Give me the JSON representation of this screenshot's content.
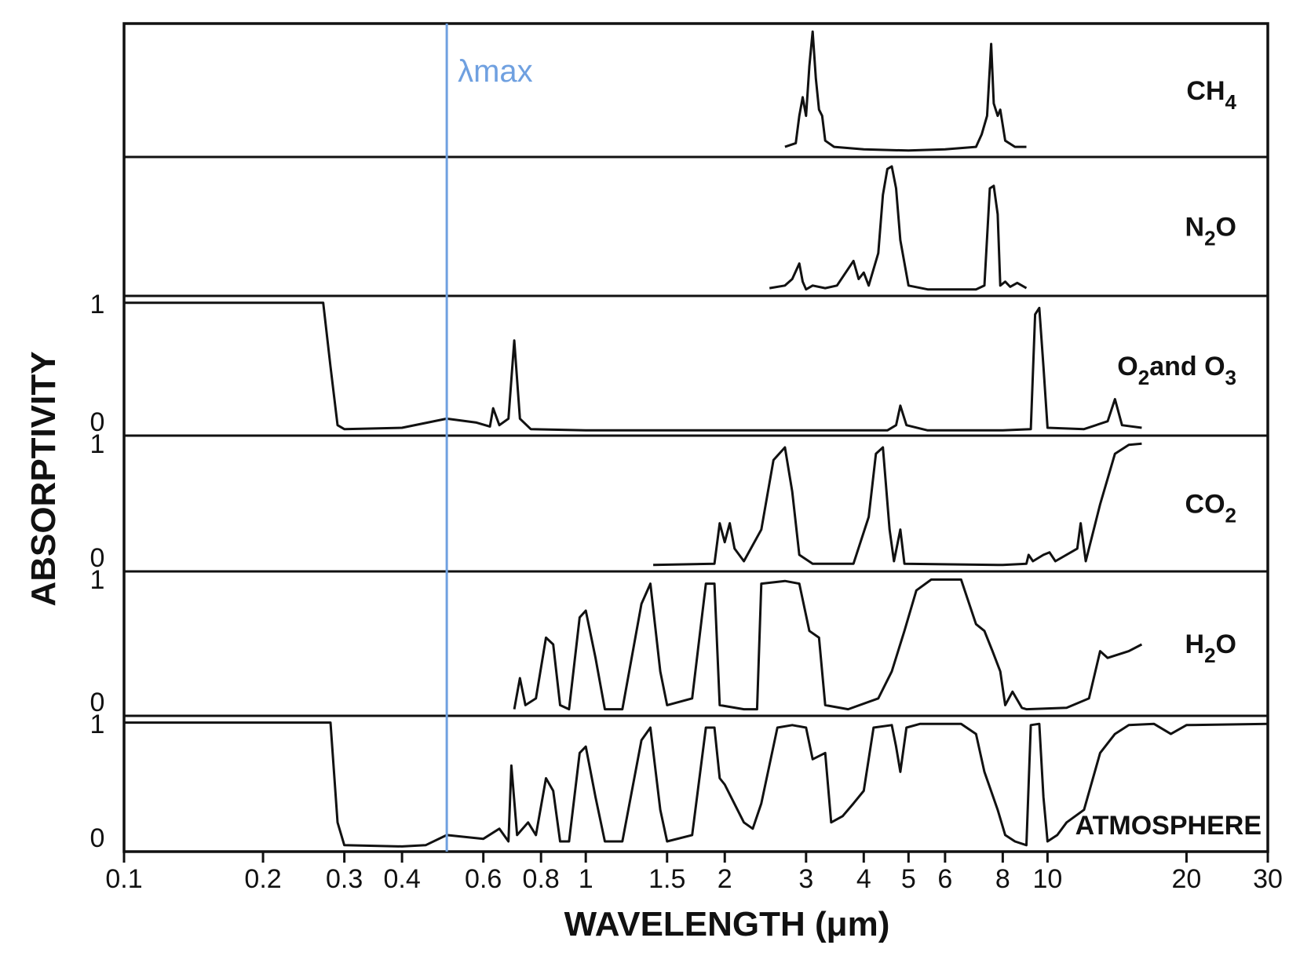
{
  "chart_data": {
    "type": "line",
    "title": "",
    "xlabel": "WAVELENGTH (μm)",
    "ylabel": "ABSORPTIVITY",
    "x_scale": "log",
    "xlim": [
      0.1,
      30
    ],
    "ylim": [
      0,
      1
    ],
    "grid": false,
    "x_ticks": [
      {
        "value": 0.1,
        "label": "0.1"
      },
      {
        "value": 0.2,
        "label": "0.2"
      },
      {
        "value": 0.3,
        "label": "0.3"
      },
      {
        "value": 0.4,
        "label": "0.4"
      },
      {
        "value": 0.6,
        "label": "0.6"
      },
      {
        "value": 0.8,
        "label": "0.8"
      },
      {
        "value": 1,
        "label": "1"
      },
      {
        "value": 1.5,
        "label": "1.5"
      },
      {
        "value": 2,
        "label": "2"
      },
      {
        "value": 3,
        "label": "3"
      },
      {
        "value": 4,
        "label": "4"
      },
      {
        "value": 5,
        "label": "5"
      },
      {
        "value": 6,
        "label": "6"
      },
      {
        "value": 8,
        "label": "8"
      },
      {
        "value": 10,
        "label": "10"
      },
      {
        "value": 20,
        "label": "20"
      },
      {
        "value": 30,
        "label": "30"
      }
    ],
    "panel_axis_labels": [
      {
        "panel": 2,
        "end": "top",
        "text": "1"
      },
      {
        "panel": 2,
        "end": "bottom",
        "text": "0"
      },
      {
        "panel": 3,
        "end": "top",
        "text": "1"
      },
      {
        "panel": 3,
        "end": "bottom",
        "text": "0"
      },
      {
        "panel": 4,
        "end": "top",
        "text": "1"
      },
      {
        "panel": 4,
        "end": "bottom",
        "text": "0"
      },
      {
        "panel": 5,
        "end": "top",
        "text": "1"
      },
      {
        "panel": 5,
        "end": "bottom",
        "text": "0"
      }
    ],
    "annotation": {
      "text": "λmax",
      "x": 0.5,
      "color": "#6fa0e0"
    },
    "series": [
      {
        "name": "CH4",
        "label_main": "CH",
        "label_sub": "4",
        "points": [
          [
            2.7,
            0.05
          ],
          [
            2.85,
            0.08
          ],
          [
            2.9,
            0.3
          ],
          [
            2.95,
            0.45
          ],
          [
            3.0,
            0.3
          ],
          [
            3.05,
            0.7
          ],
          [
            3.1,
            0.98
          ],
          [
            3.15,
            0.6
          ],
          [
            3.2,
            0.35
          ],
          [
            3.25,
            0.3
          ],
          [
            3.3,
            0.1
          ],
          [
            3.45,
            0.05
          ],
          [
            4,
            0.03
          ],
          [
            5,
            0.02
          ],
          [
            6,
            0.03
          ],
          [
            7,
            0.05
          ],
          [
            7.2,
            0.15
          ],
          [
            7.4,
            0.3
          ],
          [
            7.55,
            0.88
          ],
          [
            7.65,
            0.4
          ],
          [
            7.8,
            0.3
          ],
          [
            7.9,
            0.35
          ],
          [
            8.1,
            0.1
          ],
          [
            8.5,
            0.05
          ],
          [
            9,
            0.05
          ]
        ]
      },
      {
        "name": "N2O",
        "label_main": "N",
        "label_sub": "2",
        "label_tail": "O",
        "points": [
          [
            2.5,
            0.03
          ],
          [
            2.7,
            0.05
          ],
          [
            2.8,
            0.1
          ],
          [
            2.9,
            0.22
          ],
          [
            2.95,
            0.08
          ],
          [
            3.0,
            0.02
          ],
          [
            3.1,
            0.05
          ],
          [
            3.3,
            0.03
          ],
          [
            3.5,
            0.05
          ],
          [
            3.8,
            0.24
          ],
          [
            3.9,
            0.1
          ],
          [
            4.0,
            0.15
          ],
          [
            4.1,
            0.05
          ],
          [
            4.3,
            0.3
          ],
          [
            4.4,
            0.75
          ],
          [
            4.5,
            0.95
          ],
          [
            4.6,
            0.97
          ],
          [
            4.7,
            0.8
          ],
          [
            4.8,
            0.4
          ],
          [
            5.0,
            0.05
          ],
          [
            5.5,
            0.02
          ],
          [
            6.5,
            0.02
          ],
          [
            7.0,
            0.02
          ],
          [
            7.3,
            0.05
          ],
          [
            7.5,
            0.8
          ],
          [
            7.65,
            0.82
          ],
          [
            7.8,
            0.6
          ],
          [
            7.9,
            0.05
          ],
          [
            8.1,
            0.08
          ],
          [
            8.3,
            0.04
          ],
          [
            8.6,
            0.07
          ],
          [
            9,
            0.03
          ]
        ]
      },
      {
        "name": "O2 and O3",
        "label_main": "O",
        "label_sub": "2",
        "label_mid": "and O",
        "label_sub2": "3",
        "points": [
          [
            0.1,
            0.99
          ],
          [
            0.27,
            0.99
          ],
          [
            0.28,
            0.5
          ],
          [
            0.29,
            0.05
          ],
          [
            0.3,
            0.02
          ],
          [
            0.4,
            0.03
          ],
          [
            0.5,
            0.1
          ],
          [
            0.58,
            0.07
          ],
          [
            0.62,
            0.04
          ],
          [
            0.63,
            0.18
          ],
          [
            0.65,
            0.05
          ],
          [
            0.68,
            0.1
          ],
          [
            0.7,
            0.7
          ],
          [
            0.72,
            0.1
          ],
          [
            0.76,
            0.02
          ],
          [
            1,
            0.01
          ],
          [
            3,
            0.01
          ],
          [
            4.5,
            0.01
          ],
          [
            4.7,
            0.05
          ],
          [
            4.8,
            0.2
          ],
          [
            4.95,
            0.05
          ],
          [
            5.5,
            0.01
          ],
          [
            8,
            0.01
          ],
          [
            9.2,
            0.02
          ],
          [
            9.4,
            0.9
          ],
          [
            9.6,
            0.95
          ],
          [
            9.8,
            0.5
          ],
          [
            10,
            0.03
          ],
          [
            12,
            0.02
          ],
          [
            13.5,
            0.08
          ],
          [
            14,
            0.25
          ],
          [
            14.5,
            0.05
          ],
          [
            16,
            0.03
          ]
        ]
      },
      {
        "name": "CO2",
        "label_main": "CO",
        "label_sub": "2",
        "points": [
          [
            1.4,
            0.02
          ],
          [
            1.9,
            0.03
          ],
          [
            1.95,
            0.35
          ],
          [
            2.0,
            0.2
          ],
          [
            2.05,
            0.35
          ],
          [
            2.1,
            0.15
          ],
          [
            2.2,
            0.05
          ],
          [
            2.4,
            0.3
          ],
          [
            2.55,
            0.85
          ],
          [
            2.7,
            0.95
          ],
          [
            2.8,
            0.6
          ],
          [
            2.9,
            0.1
          ],
          [
            3.1,
            0.03
          ],
          [
            3.8,
            0.03
          ],
          [
            4.1,
            0.4
          ],
          [
            4.25,
            0.9
          ],
          [
            4.4,
            0.95
          ],
          [
            4.55,
            0.3
          ],
          [
            4.65,
            0.05
          ],
          [
            4.8,
            0.3
          ],
          [
            4.9,
            0.03
          ],
          [
            8,
            0.02
          ],
          [
            9,
            0.03
          ],
          [
            9.1,
            0.1
          ],
          [
            9.3,
            0.05
          ],
          [
            9.8,
            0.1
          ],
          [
            10.1,
            0.12
          ],
          [
            10.4,
            0.05
          ],
          [
            11.6,
            0.15
          ],
          [
            11.8,
            0.35
          ],
          [
            12.1,
            0.05
          ],
          [
            13,
            0.5
          ],
          [
            14,
            0.9
          ],
          [
            15,
            0.97
          ],
          [
            16,
            0.98
          ]
        ]
      },
      {
        "name": "H2O",
        "label_main": "H",
        "label_sub": "2",
        "label_tail": "O",
        "points": [
          [
            0.7,
            0.02
          ],
          [
            0.72,
            0.25
          ],
          [
            0.74,
            0.05
          ],
          [
            0.78,
            0.1
          ],
          [
            0.82,
            0.55
          ],
          [
            0.85,
            0.5
          ],
          [
            0.88,
            0.05
          ],
          [
            0.92,
            0.02
          ],
          [
            0.97,
            0.7
          ],
          [
            1.0,
            0.75
          ],
          [
            1.05,
            0.4
          ],
          [
            1.1,
            0.02
          ],
          [
            1.2,
            0.02
          ],
          [
            1.32,
            0.8
          ],
          [
            1.38,
            0.95
          ],
          [
            1.45,
            0.3
          ],
          [
            1.5,
            0.05
          ],
          [
            1.7,
            0.1
          ],
          [
            1.82,
            0.95
          ],
          [
            1.9,
            0.95
          ],
          [
            1.95,
            0.05
          ],
          [
            2.2,
            0.02
          ],
          [
            2.35,
            0.02
          ],
          [
            2.4,
            0.95
          ],
          [
            2.7,
            0.97
          ],
          [
            2.9,
            0.95
          ],
          [
            3.05,
            0.6
          ],
          [
            3.2,
            0.55
          ],
          [
            3.3,
            0.05
          ],
          [
            3.7,
            0.02
          ],
          [
            4.3,
            0.1
          ],
          [
            4.6,
            0.3
          ],
          [
            4.9,
            0.6
          ],
          [
            5.2,
            0.9
          ],
          [
            5.6,
            0.98
          ],
          [
            6.5,
            0.98
          ],
          [
            7,
            0.65
          ],
          [
            7.3,
            0.6
          ],
          [
            7.6,
            0.45
          ],
          [
            7.9,
            0.3
          ],
          [
            8.1,
            0.05
          ],
          [
            8.4,
            0.15
          ],
          [
            8.8,
            0.03
          ],
          [
            9,
            0.02
          ],
          [
            11,
            0.03
          ],
          [
            12.3,
            0.1
          ],
          [
            13,
            0.45
          ],
          [
            13.5,
            0.4
          ],
          [
            15,
            0.45
          ],
          [
            16,
            0.5
          ]
        ]
      },
      {
        "name": "ATMOSPHERE",
        "label_main": "ATMOSPHERE",
        "points": [
          [
            0.1,
            0.99
          ],
          [
            0.28,
            0.99
          ],
          [
            0.29,
            0.2
          ],
          [
            0.3,
            0.02
          ],
          [
            0.4,
            0.01
          ],
          [
            0.45,
            0.02
          ],
          [
            0.5,
            0.1
          ],
          [
            0.6,
            0.07
          ],
          [
            0.65,
            0.15
          ],
          [
            0.68,
            0.05
          ],
          [
            0.69,
            0.65
          ],
          [
            0.71,
            0.1
          ],
          [
            0.75,
            0.2
          ],
          [
            0.78,
            0.1
          ],
          [
            0.82,
            0.55
          ],
          [
            0.85,
            0.45
          ],
          [
            0.88,
            0.05
          ],
          [
            0.92,
            0.05
          ],
          [
            0.97,
            0.75
          ],
          [
            1.0,
            0.8
          ],
          [
            1.05,
            0.4
          ],
          [
            1.1,
            0.05
          ],
          [
            1.2,
            0.05
          ],
          [
            1.32,
            0.85
          ],
          [
            1.38,
            0.95
          ],
          [
            1.45,
            0.3
          ],
          [
            1.5,
            0.05
          ],
          [
            1.7,
            0.1
          ],
          [
            1.82,
            0.95
          ],
          [
            1.9,
            0.95
          ],
          [
            1.95,
            0.55
          ],
          [
            2.0,
            0.5
          ],
          [
            2.2,
            0.2
          ],
          [
            2.3,
            0.15
          ],
          [
            2.4,
            0.35
          ],
          [
            2.6,
            0.95
          ],
          [
            2.8,
            0.97
          ],
          [
            3.0,
            0.95
          ],
          [
            3.1,
            0.7
          ],
          [
            3.3,
            0.75
          ],
          [
            3.4,
            0.2
          ],
          [
            3.6,
            0.25
          ],
          [
            3.8,
            0.35
          ],
          [
            4.0,
            0.45
          ],
          [
            4.2,
            0.95
          ],
          [
            4.6,
            0.97
          ],
          [
            4.7,
            0.8
          ],
          [
            4.8,
            0.6
          ],
          [
            4.95,
            0.95
          ],
          [
            5.3,
            0.98
          ],
          [
            6.5,
            0.98
          ],
          [
            7.0,
            0.9
          ],
          [
            7.3,
            0.6
          ],
          [
            7.8,
            0.3
          ],
          [
            8.1,
            0.1
          ],
          [
            8.5,
            0.05
          ],
          [
            9.0,
            0.02
          ],
          [
            9.2,
            0.97
          ],
          [
            9.6,
            0.98
          ],
          [
            9.8,
            0.4
          ],
          [
            10,
            0.05
          ],
          [
            10.5,
            0.1
          ],
          [
            11,
            0.2
          ],
          [
            12,
            0.3
          ],
          [
            13,
            0.75
          ],
          [
            14,
            0.9
          ],
          [
            15,
            0.97
          ],
          [
            17,
            0.98
          ],
          [
            18.5,
            0.9
          ],
          [
            20,
            0.97
          ],
          [
            30,
            0.98
          ]
        ]
      }
    ]
  }
}
